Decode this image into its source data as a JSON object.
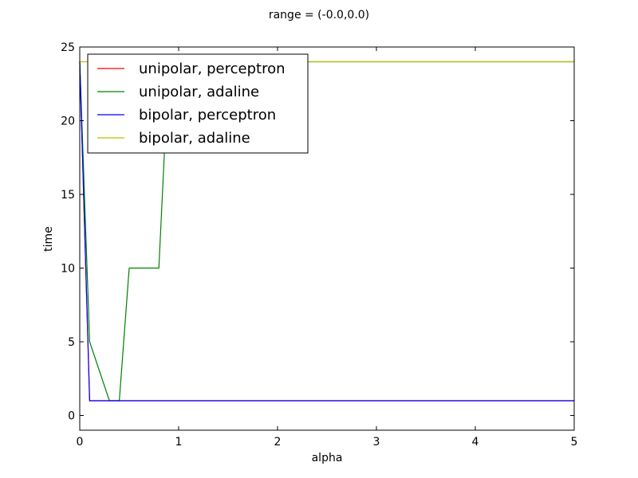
{
  "chart_data": {
    "type": "line",
    "title": "range = (-0.0,0.0)",
    "xlabel": "alpha",
    "ylabel": "time",
    "xlim": [
      0,
      5
    ],
    "ylim": [
      -1,
      25
    ],
    "xticks": [
      0,
      1,
      2,
      3,
      4,
      5
    ],
    "yticks": [
      0,
      5,
      10,
      15,
      20,
      25
    ],
    "grid": false,
    "legend_position": "top-left",
    "series": [
      {
        "name": "unipolar, perceptron",
        "color": "#ff0000",
        "x": [
          0,
          0.1,
          0.2,
          0.3,
          0.4,
          0.5,
          1,
          2,
          3,
          4,
          5
        ],
        "y": [
          24,
          1,
          1,
          1,
          1,
          1,
          1,
          1,
          1,
          1,
          1
        ]
      },
      {
        "name": "unipolar, adaline",
        "color": "#008000",
        "x": [
          0,
          0.1,
          0.2,
          0.3,
          0.4,
          0.5,
          0.6,
          0.7,
          0.8,
          0.9,
          1,
          2,
          3,
          4,
          5
        ],
        "y": [
          24,
          5,
          3,
          1,
          1,
          10,
          10,
          10,
          10,
          24,
          24,
          24,
          24,
          24,
          24
        ]
      },
      {
        "name": "bipolar, perceptron",
        "color": "#0000ff",
        "x": [
          0,
          0.1,
          0.2,
          0.3,
          0.4,
          0.5,
          1,
          2,
          3,
          4,
          5
        ],
        "y": [
          24,
          1,
          1,
          1,
          1,
          1,
          1,
          1,
          1,
          1,
          1
        ]
      },
      {
        "name": "bipolar, adaline",
        "color": "#bfbf00",
        "x": [
          0,
          1,
          2,
          3,
          4,
          5
        ],
        "y": [
          24,
          24,
          24,
          24,
          24,
          24
        ]
      }
    ]
  }
}
